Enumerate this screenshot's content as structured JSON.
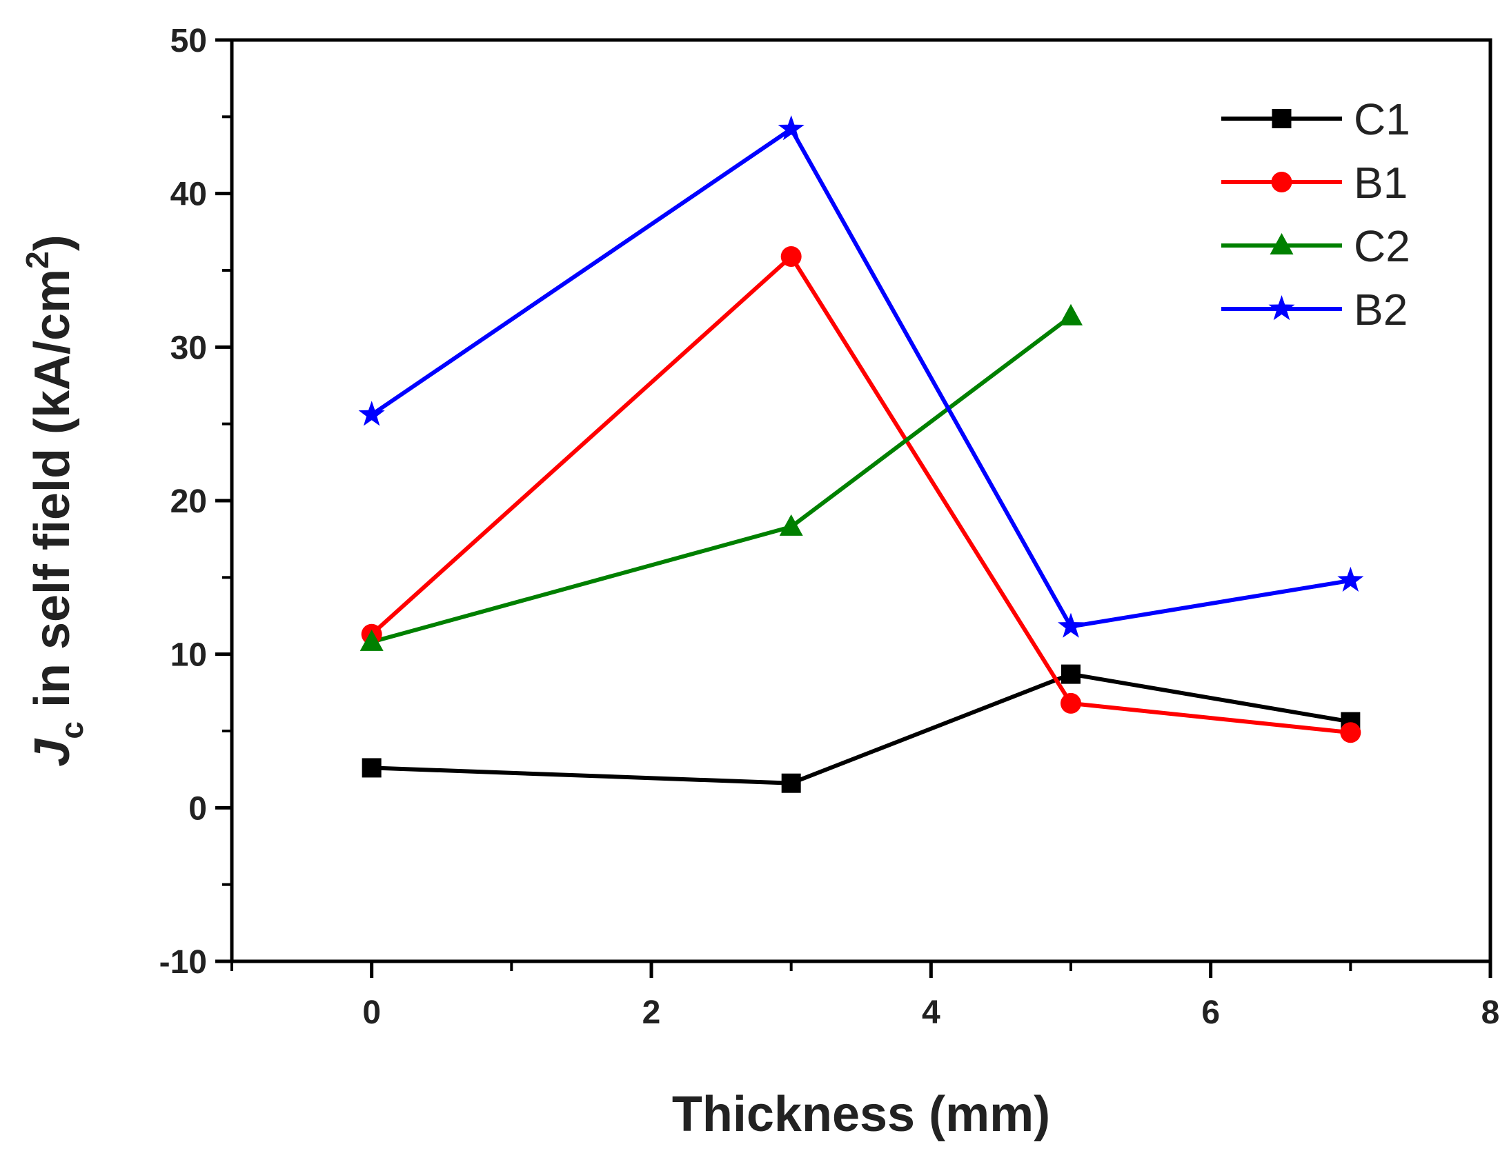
{
  "chart_data": {
    "type": "line",
    "title": "",
    "xlabel": "Thickness (mm)",
    "ylabel_main": "J",
    "ylabel_sub": "c",
    "ylabel_rest": " in self field (kA/cm",
    "ylabel_sup": "2",
    "ylabel_close": ")",
    "xlim": [
      -1,
      8
    ],
    "ylim": [
      -10,
      50
    ],
    "xticks": [
      0,
      2,
      4,
      6,
      8
    ],
    "xtick_labels": [
      "0",
      "2",
      "4",
      "6",
      "8"
    ],
    "yticks": [
      -10,
      0,
      10,
      20,
      30,
      40,
      50
    ],
    "ytick_labels": [
      "-10",
      "0",
      "10",
      "20",
      "30",
      "40",
      "50"
    ],
    "grid": false,
    "legend_position": "top-right",
    "series": [
      {
        "name": "C1",
        "color": "#000000",
        "marker": "square",
        "x": [
          0,
          3,
          5,
          7
        ],
        "y": [
          2.6,
          1.6,
          8.7,
          5.6
        ]
      },
      {
        "name": "B1",
        "color": "#ff0000",
        "marker": "circle",
        "x": [
          0,
          3,
          5,
          7
        ],
        "y": [
          11.3,
          35.9,
          6.8,
          4.9
        ]
      },
      {
        "name": "C2",
        "color": "#008000",
        "marker": "triangle",
        "x": [
          0,
          3,
          5
        ],
        "y": [
          10.8,
          18.3,
          32.0
        ]
      },
      {
        "name": "B2",
        "color": "#0000ff",
        "marker": "star",
        "x": [
          0,
          3,
          5,
          7
        ],
        "y": [
          25.6,
          44.2,
          11.8,
          14.8
        ]
      }
    ]
  }
}
